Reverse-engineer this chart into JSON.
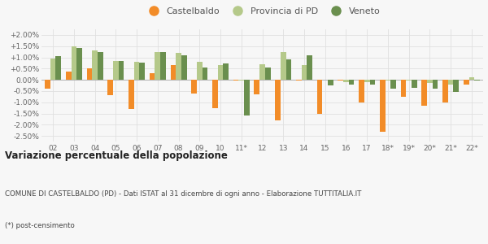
{
  "years": [
    "02",
    "03",
    "04",
    "05",
    "06",
    "07",
    "08",
    "09",
    "10",
    "11*",
    "12",
    "13",
    "14",
    "15",
    "16",
    "17",
    "18*",
    "19*",
    "20*",
    "21*",
    "22*"
  ],
  "castelbaldo": [
    -0.4,
    0.35,
    0.5,
    -0.7,
    -1.3,
    0.3,
    0.65,
    -0.6,
    -1.25,
    -0.05,
    -0.65,
    -1.8,
    -0.05,
    -1.5,
    -0.05,
    -1.0,
    -2.3,
    -0.75,
    -1.15,
    -1.0,
    -0.2
  ],
  "provincia": [
    0.95,
    1.5,
    1.3,
    0.85,
    0.8,
    1.25,
    1.2,
    0.8,
    0.65,
    -0.05,
    0.7,
    1.25,
    0.65,
    0.0,
    -0.1,
    -0.1,
    -0.05,
    -0.05,
    -0.15,
    -0.2,
    0.1
  ],
  "veneto": [
    1.05,
    1.42,
    1.22,
    0.82,
    0.75,
    1.25,
    1.1,
    0.55,
    0.72,
    -1.6,
    0.55,
    0.92,
    1.08,
    -0.25,
    -0.2,
    -0.2,
    -0.4,
    -0.35,
    -0.4,
    -0.55,
    -0.05
  ],
  "castelbaldo_color": "#f28c28",
  "provincia_color": "#b5c98a",
  "veneto_color": "#6a8f4e",
  "bg_color": "#f7f7f7",
  "grid_color": "#e0e0e0",
  "title_main": "Variazione percentuale della popolazione",
  "title_sub1": "COMUNE DI CASTELBALDO (PD) - Dati ISTAT al 31 dicembre di ogni anno - Elaborazione TUTTITALIA.IT",
  "title_sub2": "(*) post-censimento",
  "ylim": [
    -2.75,
    2.25
  ],
  "yticks": [
    -2.5,
    -2.0,
    -1.5,
    -1.0,
    -0.5,
    0.0,
    0.5,
    1.0,
    1.5,
    2.0
  ],
  "ytick_labels": [
    "-2.50%",
    "-2.00%",
    "-1.50%",
    "-1.00%",
    "-0.50%",
    "0.00%",
    "+0.50%",
    "+1.00%",
    "+1.50%",
    "+2.00%"
  ]
}
